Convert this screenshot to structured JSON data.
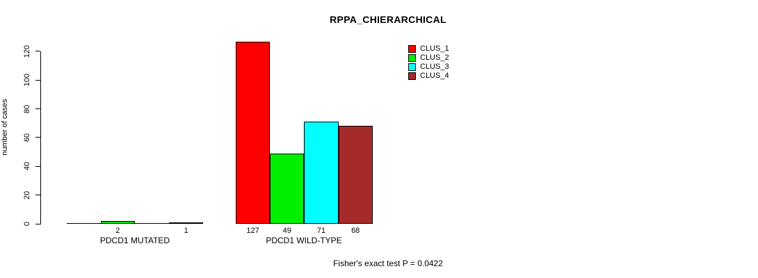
{
  "title": "RPPA_CHIERARCHICAL",
  "footer": "Fisher's exact test P = 0.0422",
  "chart_data": {
    "type": "bar",
    "title": "RPPA_CHIERARCHICAL",
    "xlabel": "",
    "ylabel": "number of cases",
    "ylim": [
      0,
      130
    ],
    "yticks": [
      0,
      20,
      40,
      60,
      80,
      100,
      120
    ],
    "grid": false,
    "legend_position": "top-right",
    "categories": [
      "PDCD1 MUTATED",
      "PDCD1 WILD-TYPE"
    ],
    "series": [
      {
        "name": "CLUS_1",
        "color": "#FF0000",
        "values": [
          0,
          127
        ]
      },
      {
        "name": "CLUS_2",
        "color": "#00EE00",
        "values": [
          2,
          49
        ]
      },
      {
        "name": "CLUS_3",
        "color": "#00FFFF",
        "values": [
          0,
          71
        ]
      },
      {
        "name": "CLUS_4",
        "color": "#A52A2A",
        "values": [
          1,
          68
        ]
      }
    ],
    "visible_bar_labels": [
      "2",
      "1",
      "127",
      "49",
      "71",
      "68"
    ],
    "annotation": "Fisher's exact test P = 0.0422"
  }
}
